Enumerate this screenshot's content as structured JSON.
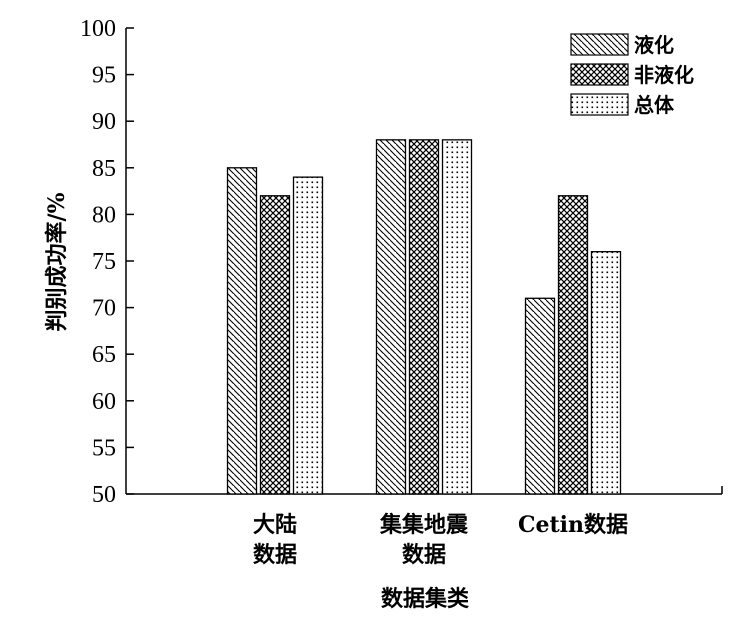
{
  "chart_data": {
    "type": "bar",
    "categories": [
      [
        "大陆",
        "数据"
      ],
      [
        "集集地震",
        "数据"
      ],
      [
        "Cetin数据"
      ]
    ],
    "series": [
      {
        "name": "液化",
        "values": [
          85,
          88,
          71
        ],
        "pattern": "diagonal"
      },
      {
        "name": "非液化",
        "values": [
          82,
          88,
          82
        ],
        "pattern": "crosshatch"
      },
      {
        "name": "总体",
        "values": [
          84,
          88,
          76
        ],
        "pattern": "dots"
      }
    ],
    "xlabel": "数据集类",
    "ylabel": "判别成功率/%",
    "ylim": [
      50,
      100
    ],
    "yticks": [
      50,
      55,
      60,
      65,
      70,
      75,
      80,
      85,
      90,
      95,
      100
    ],
    "legend_position": "top-right",
    "grid": false
  }
}
